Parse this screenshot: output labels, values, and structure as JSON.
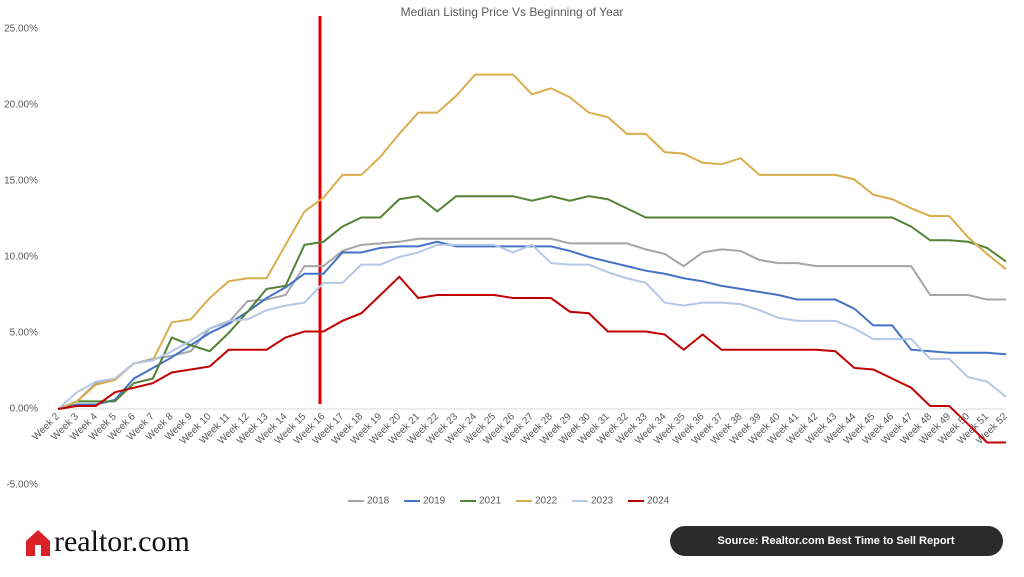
{
  "chart_data": {
    "type": "line",
    "title": "Median Listing Price Vs Beginning of Year",
    "categories": [
      "Week 2",
      "Week 3",
      "Week 4",
      "Week 5",
      "Week 6",
      "Week 7",
      "Week 8",
      "Week 9",
      "Week 10",
      "Week 11",
      "Week 12",
      "Week 13",
      "Week 14",
      "Week 15",
      "Week 16",
      "Week 17",
      "Week 18",
      "Week 19",
      "Week 20",
      "Week 21",
      "Week 22",
      "Week 23",
      "Week 24",
      "Week 25",
      "Week 26",
      "Week 27",
      "Week 28",
      "Week 29",
      "Week 30",
      "Week 31",
      "Week 32",
      "Week 33",
      "Week 34",
      "Week 35",
      "Week 36",
      "Week 37",
      "Week 38",
      "Week 39",
      "Week 40",
      "Week 41",
      "Week 42",
      "Week 43",
      "Week 44",
      "Week 45",
      "Week 46",
      "Week 47",
      "Week 48",
      "Week 49",
      "Week 50",
      "Week 51",
      "Week 52"
    ],
    "series": [
      {
        "name": "2018",
        "color": "#a5a5a5",
        "values": [
          0,
          0.5,
          1.7,
          2.0,
          3.0,
          3.3,
          3.5,
          3.8,
          5.3,
          5.7,
          7.1,
          7.2,
          7.5,
          9.4,
          9.4,
          10.4,
          10.8,
          10.9,
          11.0,
          11.2,
          11.2,
          11.2,
          11.2,
          11.2,
          11.2,
          11.2,
          11.2,
          10.9,
          10.9,
          10.9,
          10.9,
          10.5,
          10.2,
          9.4,
          10.3,
          10.5,
          10.4,
          9.8,
          9.6,
          9.6,
          9.4,
          9.4,
          9.4,
          9.4,
          9.4,
          9.4,
          7.5,
          7.5,
          7.5,
          7.2,
          7.2
        ]
      },
      {
        "name": "2019",
        "color": "#4472c4",
        "values": [
          0,
          0.3,
          0.3,
          0.6,
          2.0,
          2.7,
          3.4,
          4.2,
          5.0,
          5.6,
          6.4,
          7.3,
          8.0,
          8.9,
          8.9,
          10.3,
          10.3,
          10.6,
          10.7,
          10.7,
          11.0,
          10.7,
          10.7,
          10.7,
          10.7,
          10.7,
          10.7,
          10.4,
          10.0,
          9.7,
          9.4,
          9.1,
          8.9,
          8.6,
          8.4,
          8.1,
          7.9,
          7.7,
          7.5,
          7.2,
          7.2,
          7.2,
          6.6,
          5.5,
          5.5,
          3.9,
          3.8,
          3.7,
          3.7,
          3.7,
          3.6
        ]
      },
      {
        "name": "2021",
        "color": "#548235",
        "values": [
          0,
          0.5,
          0.5,
          0.5,
          1.7,
          2.0,
          4.7,
          4.2,
          3.8,
          5.0,
          6.4,
          7.9,
          8.1,
          10.8,
          11.0,
          12.0,
          12.6,
          12.6,
          13.8,
          14.0,
          13.0,
          14.0,
          14.0,
          14.0,
          14.0,
          13.7,
          14.0,
          13.7,
          14.0,
          13.8,
          13.2,
          12.6,
          12.6,
          12.6,
          12.6,
          12.6,
          12.6,
          12.6,
          12.6,
          12.6,
          12.6,
          12.6,
          12.6,
          12.6,
          12.6,
          12.0,
          11.1,
          11.1,
          11.0,
          10.6,
          9.7
        ]
      },
      {
        "name": "2022",
        "color": "#d9ad4d",
        "values": [
          0,
          0.5,
          1.6,
          1.9,
          3.0,
          3.2,
          5.7,
          5.9,
          7.3,
          8.4,
          8.6,
          8.6,
          10.8,
          13.0,
          13.9,
          15.4,
          15.4,
          16.6,
          18.1,
          19.5,
          19.5,
          20.6,
          22.0,
          22.0,
          22.0,
          20.7,
          21.1,
          20.5,
          19.5,
          19.2,
          18.1,
          18.1,
          16.9,
          16.8,
          16.2,
          16.1,
          16.5,
          15.4,
          15.4,
          15.4,
          15.4,
          15.4,
          15.1,
          14.1,
          13.8,
          13.2,
          12.7,
          12.7,
          11.3,
          10.2,
          9.2
        ]
      },
      {
        "name": "2023",
        "color": "#b4c7e7",
        "values": [
          0,
          1.1,
          1.8,
          2.0,
          3.0,
          3.2,
          3.8,
          4.5,
          5.3,
          5.8,
          5.9,
          6.5,
          6.8,
          7.0,
          8.3,
          8.3,
          9.5,
          9.5,
          10.0,
          10.3,
          10.8,
          10.8,
          10.8,
          10.8,
          10.3,
          10.8,
          9.6,
          9.5,
          9.5,
          9.0,
          8.6,
          8.3,
          7.0,
          6.8,
          7.0,
          7.0,
          6.9,
          6.5,
          6.0,
          5.8,
          5.8,
          5.8,
          5.3,
          4.6,
          4.6,
          4.6,
          3.3,
          3.3,
          2.1,
          1.8,
          0.8
        ]
      },
      {
        "name": "2024",
        "color": "#c00000",
        "values": [
          0,
          0.2,
          0.2,
          1.1,
          1.4,
          1.7,
          2.4,
          2.6,
          2.8,
          3.9,
          3.9,
          3.9,
          4.7,
          5.1,
          5.1,
          5.8,
          6.3,
          7.5,
          8.7,
          7.3,
          7.5,
          7.5,
          7.5,
          7.5,
          7.3,
          7.3,
          7.3,
          6.4,
          6.3,
          5.1,
          5.1,
          5.1,
          4.9,
          3.9,
          4.9,
          3.9,
          3.9,
          3.9,
          3.9,
          3.9,
          3.9,
          3.8,
          2.7,
          2.6,
          2.0,
          1.4,
          0.2,
          0.2,
          -1.0,
          -2.2,
          -2.2
        ]
      }
    ],
    "ylim": [
      -5,
      25
    ],
    "yticks": [
      {
        "value": -5,
        "label": "-5.00%"
      },
      {
        "value": 0,
        "label": "0.00%"
      },
      {
        "value": 5,
        "label": "5.00%"
      },
      {
        "value": 10,
        "label": "10.00%"
      },
      {
        "value": 15,
        "label": "15.00%"
      },
      {
        "value": 20,
        "label": "20.00%"
      },
      {
        "value": 25,
        "label": "25.00%"
      }
    ],
    "grid": false,
    "legend": "bottom"
  },
  "source": "Source: Realtor.com Best Time to Sell Report",
  "logo": "realtor.com"
}
